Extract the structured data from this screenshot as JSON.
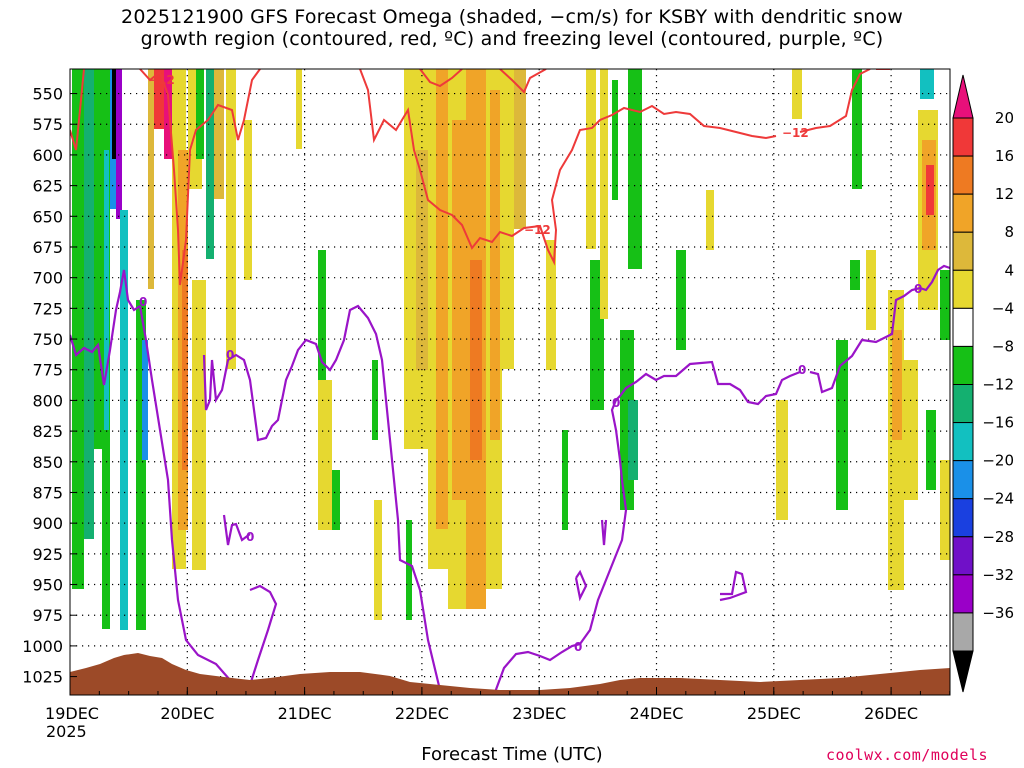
{
  "chart_data": {
    "type": "heatmap",
    "title_line1": "2025121900 GFS Forecast Omega (shaded, −cm/s) for KSBY with dendritic snow",
    "title_line2": "growth region (contoured, red, ºC) and freezing level (contoured, purple, ºC)",
    "xlabel": "Forecast Time (UTC)",
    "x_ticks": [
      "19DEC",
      "20DEC",
      "21DEC",
      "22DEC",
      "23DEC",
      "24DEC",
      "25DEC",
      "26DEC"
    ],
    "x_tick_year": "2025",
    "x_range_hours": [
      0,
      180
    ],
    "y_ticks": [
      550,
      575,
      600,
      625,
      650,
      675,
      700,
      725,
      750,
      775,
      800,
      825,
      850,
      875,
      900,
      925,
      950,
      975,
      1000,
      1025
    ],
    "y_range_hPa": [
      530,
      1040
    ],
    "colorbar": {
      "labels": [
        "20",
        "16",
        "12",
        "8",
        "4",
        "−4",
        "−8",
        "−12",
        "−16",
        "−20",
        "−24",
        "−28",
        "−32",
        "−36"
      ],
      "colors": [
        "#e8107a",
        "#f03838",
        "#ee7a22",
        "#f0a428",
        "#ddb83a",
        "#e6d830",
        "#ffffff",
        "#16c016",
        "#14b070",
        "#12c0c0",
        "#1a90e8",
        "#1a40e0",
        "#7010c8",
        "#9a00c8",
        "#a8a8a8",
        "#000000"
      ]
    },
    "contour_labels": {
      "dendritic_red": [
        "−12",
        "−12",
        "−12"
      ],
      "freezing_purple": [
        "0",
        "0",
        "0",
        "0",
        "0",
        "0",
        "0"
      ]
    },
    "colors": {
      "dendritic_contour": "#ee3a3a",
      "freezing_contour": "#9a14c8",
      "terrain": "#9c4a28"
    }
  },
  "credit": "coolwx.com/models"
}
